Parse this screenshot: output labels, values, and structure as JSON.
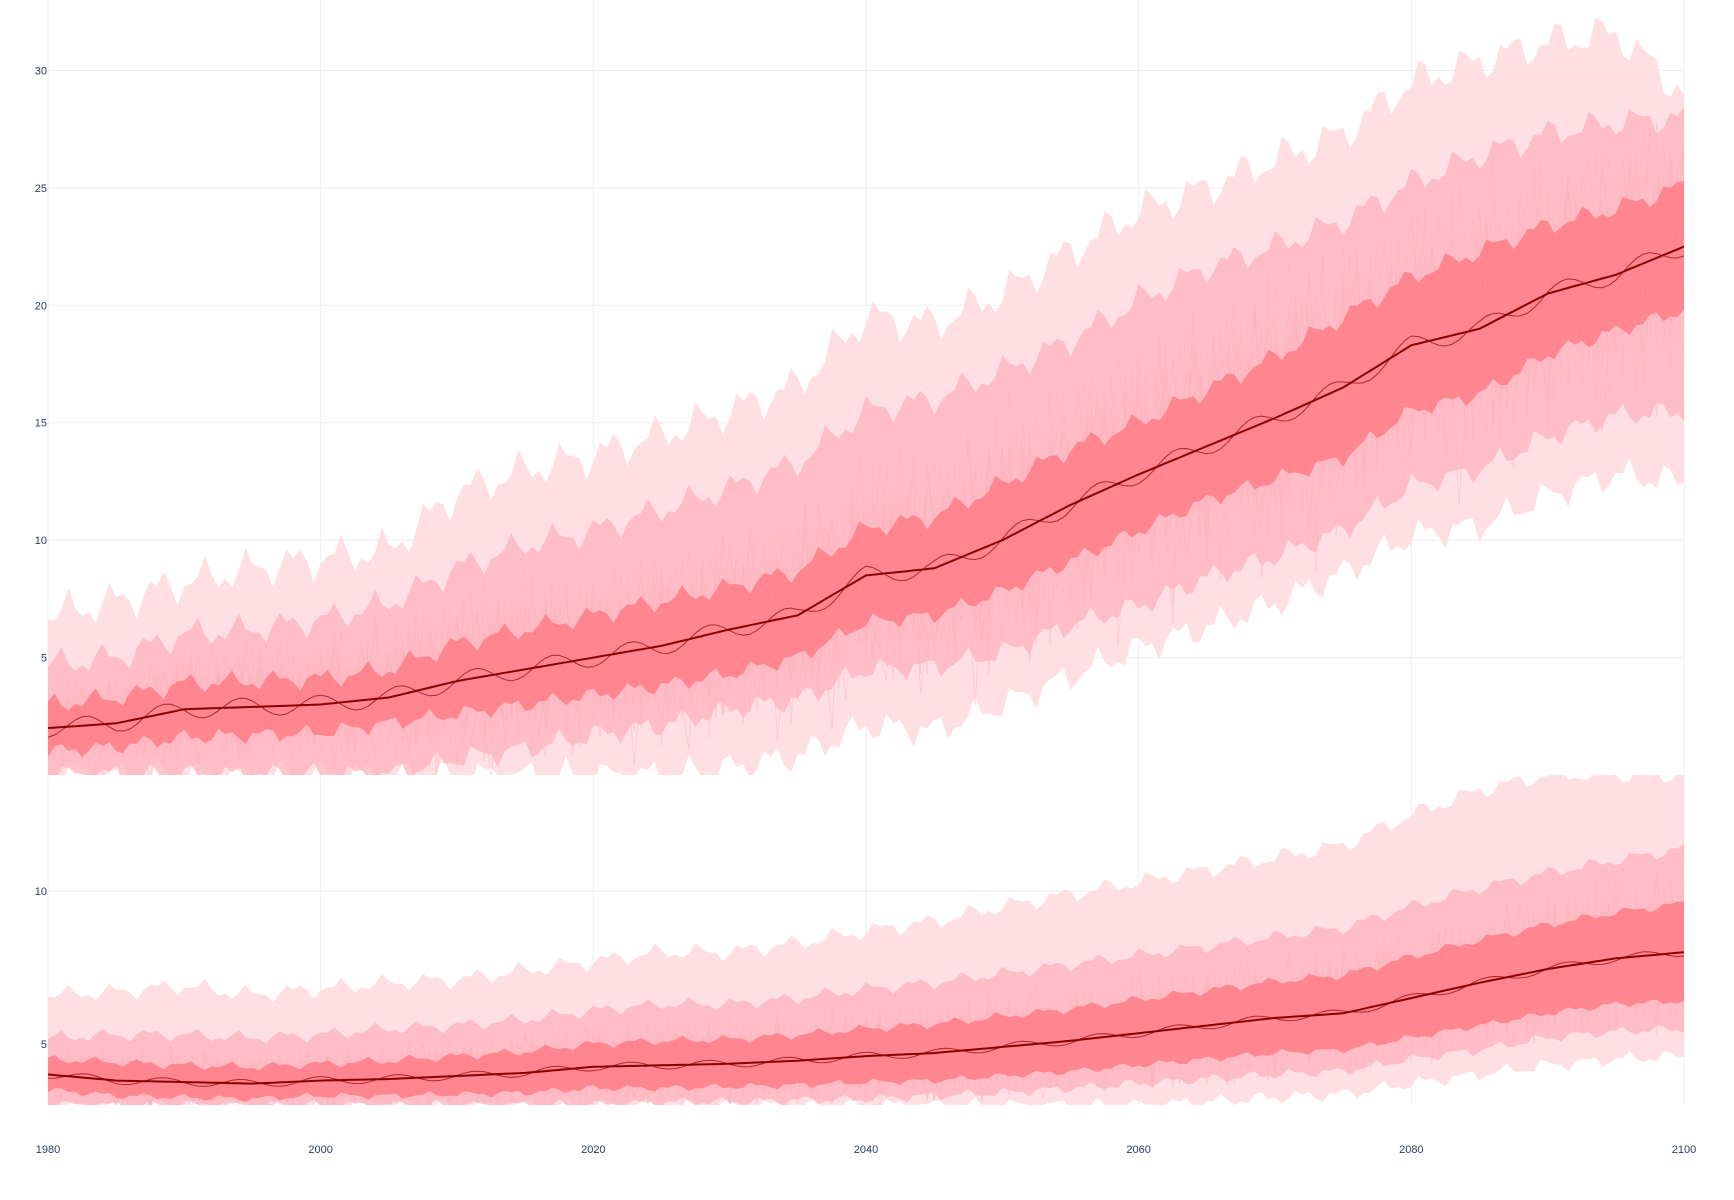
{
  "colors": {
    "outer_band": "#ffdbe0",
    "middle_band": "#ffb3bd",
    "inner_band": "#ff707a",
    "member_line": "#f5a6b0",
    "central_line": "#8b0000",
    "grid": "#eceef3",
    "tick_text": "#2a3f5f"
  },
  "chart_data": [
    {
      "type": "line",
      "title": "",
      "xlabel": "",
      "ylabel": "",
      "xlim": [
        1980,
        2100
      ],
      "ylim": [
        0,
        33
      ],
      "x_ticks": [
        "1980",
        "2000",
        "2020",
        "2040",
        "2060",
        "2080",
        "2100"
      ],
      "y_ticks": [
        "5",
        "10",
        "15",
        "20",
        "25",
        "30"
      ],
      "grid": true,
      "legend": "none",
      "x": [
        1980,
        1985,
        1990,
        1995,
        2000,
        2005,
        2010,
        2015,
        2020,
        2025,
        2030,
        2035,
        2040,
        2045,
        2050,
        2055,
        2060,
        2065,
        2070,
        2075,
        2080,
        2085,
        2090,
        2095,
        2100
      ],
      "series": [
        {
          "role": "central",
          "values": [
            2.0,
            2.2,
            2.8,
            2.9,
            3.0,
            3.3,
            4.0,
            4.5,
            5.0,
            5.5,
            6.2,
            6.8,
            8.5,
            8.8,
            10.0,
            11.5,
            12.8,
            14.0,
            15.2,
            16.5,
            18.3,
            19.0,
            20.5,
            21.3,
            22.5
          ]
        },
        {
          "role": "inner_band_upper",
          "values": [
            3.0,
            3.3,
            3.9,
            4.0,
            4.1,
            4.5,
            5.6,
            6.2,
            6.8,
            7.4,
            8.0,
            8.7,
            10.5,
            11.0,
            12.4,
            13.9,
            15.0,
            16.4,
            17.8,
            19.5,
            21.2,
            22.3,
            23.4,
            24.1,
            25.1
          ]
        },
        {
          "role": "inner_band_lower",
          "values": [
            1.0,
            1.2,
            1.6,
            1.7,
            1.8,
            2.2,
            2.6,
            3.0,
            3.4,
            3.8,
            4.3,
            5.0,
            6.5,
            6.8,
            7.8,
            9.1,
            10.4,
            11.7,
            12.6,
            13.5,
            15.5,
            16.2,
            17.9,
            18.9,
            19.8
          ]
        },
        {
          "role": "middle_band_upper",
          "values": [
            4.7,
            5.0,
            6.0,
            6.2,
            6.6,
            7.3,
            8.8,
            9.8,
            10.4,
            11.3,
            12.2,
            13.3,
            15.5,
            16.0,
            17.2,
            18.5,
            20.2,
            21.6,
            22.5,
            23.6,
            25.2,
            26.4,
            27.3,
            27.8,
            28.0
          ]
        },
        {
          "role": "middle_band_lower",
          "values": [
            0.0,
            0.0,
            0.0,
            0.0,
            0.0,
            0.0,
            0.7,
            1.1,
            1.7,
            2.1,
            2.8,
            3.2,
            4.5,
            4.6,
            5.2,
            6.4,
            7.2,
            8.4,
            9.3,
            10.4,
            12.3,
            13.0,
            14.4,
            15.3,
            15.5
          ]
        },
        {
          "role": "outer_band_upper",
          "values": [
            6.8,
            7.4,
            8.2,
            8.8,
            9.2,
            9.6,
            12.0,
            13.0,
            13.6,
            14.5,
            15.5,
            16.6,
            19.5,
            19.2,
            20.5,
            22.3,
            24.0,
            25.0,
            26.2,
            27.3,
            29.5,
            30.4,
            31.2,
            31.6,
            29.0
          ]
        },
        {
          "role": "outer_band_lower",
          "values": [
            0.0,
            0.0,
            0.0,
            0.0,
            0.0,
            0.0,
            0.0,
            0.0,
            0.0,
            0.0,
            0.3,
            0.8,
            2.1,
            1.9,
            3.0,
            4.2,
            5.4,
            6.3,
            7.3,
            8.6,
            10.2,
            10.6,
            11.9,
            12.8,
            12.5
          ]
        }
      ]
    },
    {
      "type": "line",
      "title": "",
      "xlabel": "",
      "ylabel": "",
      "xlim": [
        1980,
        2100
      ],
      "ylim": [
        3,
        13.8
      ],
      "x_ticks": [
        "1980",
        "2000",
        "2020",
        "2040",
        "2060",
        "2080",
        "2100"
      ],
      "y_ticks": [
        "5",
        "10"
      ],
      "grid": true,
      "legend": "none",
      "x": [
        1980,
        1985,
        1990,
        1995,
        2000,
        2005,
        2010,
        2015,
        2020,
        2025,
        2030,
        2035,
        2040,
        2045,
        2050,
        2055,
        2060,
        2065,
        2070,
        2075,
        2080,
        2085,
        2090,
        2095,
        2100
      ],
      "series": [
        {
          "role": "central",
          "values": [
            4.0,
            3.8,
            3.75,
            3.7,
            3.8,
            3.85,
            3.95,
            4.05,
            4.25,
            4.3,
            4.35,
            4.45,
            4.6,
            4.7,
            4.9,
            5.1,
            5.35,
            5.6,
            5.85,
            6.0,
            6.5,
            7.0,
            7.45,
            7.8,
            8.0
          ]
        },
        {
          "role": "inner_band_upper",
          "values": [
            4.5,
            4.4,
            4.3,
            4.25,
            4.35,
            4.45,
            4.6,
            4.75,
            5.0,
            5.1,
            5.15,
            5.3,
            5.5,
            5.65,
            5.9,
            6.15,
            6.45,
            6.75,
            7.05,
            7.25,
            7.85,
            8.4,
            8.9,
            9.3,
            9.6
          ]
        },
        {
          "role": "inner_band_lower",
          "values": [
            3.5,
            3.3,
            3.25,
            3.2,
            3.3,
            3.3,
            3.35,
            3.4,
            3.55,
            3.55,
            3.6,
            3.65,
            3.75,
            3.8,
            3.95,
            4.1,
            4.3,
            4.5,
            4.7,
            4.8,
            5.2,
            5.6,
            6.0,
            6.3,
            6.4
          ]
        },
        {
          "role": "middle_band_upper",
          "values": [
            5.2,
            5.3,
            5.3,
            5.2,
            5.3,
            5.5,
            5.6,
            5.8,
            6.1,
            6.3,
            6.3,
            6.5,
            6.8,
            7.0,
            7.3,
            7.6,
            7.9,
            8.2,
            8.5,
            8.8,
            9.5,
            10.1,
            10.6,
            11.0,
            11.4
          ]
        },
        {
          "role": "middle_band_lower",
          "values": [
            3.0,
            3.0,
            3.0,
            3.0,
            3.0,
            3.0,
            3.0,
            3.0,
            3.0,
            3.1,
            3.1,
            3.15,
            3.2,
            3.3,
            3.4,
            3.55,
            3.7,
            3.85,
            4.0,
            4.1,
            4.5,
            4.8,
            5.2,
            5.4,
            5.5
          ]
        },
        {
          "role": "outer_band_upper",
          "values": [
            6.6,
            6.7,
            6.9,
            6.6,
            6.8,
            7.0,
            7.1,
            7.4,
            7.7,
            8.0,
            8.0,
            8.3,
            8.7,
            9.0,
            9.5,
            9.9,
            10.3,
            10.7,
            11.1,
            11.5,
            12.5,
            13.3,
            13.8,
            13.8,
            13.8
          ]
        },
        {
          "role": "outer_band_lower",
          "values": [
            3.0,
            3.0,
            3.0,
            3.0,
            3.0,
            3.0,
            3.0,
            3.0,
            3.0,
            3.0,
            3.0,
            3.0,
            3.0,
            3.0,
            3.0,
            3.0,
            3.0,
            3.1,
            3.25,
            3.35,
            3.7,
            4.0,
            4.3,
            4.5,
            4.6
          ]
        }
      ]
    }
  ]
}
